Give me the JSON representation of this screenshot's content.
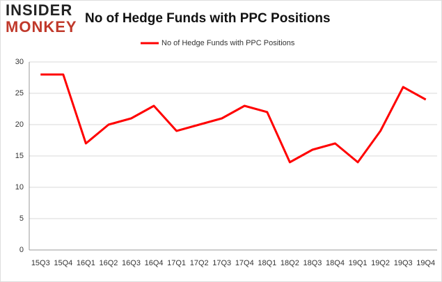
{
  "logo": {
    "line1": "INSIDER",
    "line2": "MONKEY"
  },
  "chart_data": {
    "type": "line",
    "title": "No of Hedge Funds with PPC Positions",
    "categories": [
      "15Q3",
      "15Q4",
      "16Q1",
      "16Q2",
      "16Q3",
      "16Q4",
      "17Q1",
      "17Q2",
      "17Q3",
      "17Q4",
      "18Q1",
      "18Q2",
      "18Q3",
      "18Q4",
      "19Q1",
      "19Q2",
      "19Q3",
      "19Q4"
    ],
    "series": [
      {
        "name": "No of Hedge Funds with PPC Positions",
        "color": "#ff0000",
        "values": [
          28,
          28,
          17,
          20,
          21,
          23,
          19,
          20,
          21,
          23,
          22,
          14,
          16,
          17,
          14,
          19,
          26,
          24
        ]
      }
    ],
    "ylim": [
      0,
      30
    ],
    "yticks": [
      0,
      5,
      10,
      15,
      20,
      25,
      30
    ],
    "grid": true,
    "legend": "top"
  }
}
